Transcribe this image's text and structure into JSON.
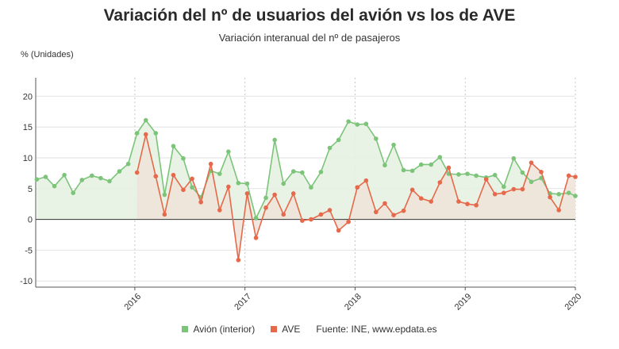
{
  "chart_data": {
    "type": "line",
    "title": "Variación del nº de usuarios del avión vs los de AVE",
    "subtitle": "Variación interanual del nº de pasajeros",
    "ylabel": "% (Unidades)",
    "xlabel": "",
    "ylim": [
      -11,
      23
    ],
    "yticks": [
      -10,
      -5,
      0,
      5,
      10,
      15,
      20
    ],
    "x_start": 2015.1,
    "x_end": 2020.0,
    "xticks": [
      2016,
      2017,
      2018,
      2019,
      2020
    ],
    "xtick_labels": [
      "2016",
      "2017",
      "2018",
      "2019",
      "2020"
    ],
    "grid": "horizontal",
    "legend_position": "bottom",
    "source": "Fuente: INE, www.epdata.es",
    "series": [
      {
        "name": "Avión (interior)",
        "color": "#7cc47a",
        "fill": "#e6f2e2",
        "x": [
          2015.11,
          2015.19,
          2015.27,
          2015.36,
          2015.44,
          2015.52,
          2015.61,
          2015.69,
          2015.77,
          2015.86,
          2015.94,
          2016.02,
          2016.1,
          2016.19,
          2016.27,
          2016.35,
          2016.44,
          2016.52,
          2016.6,
          2016.69,
          2016.77,
          2016.85,
          2016.94,
          2017.02,
          2017.1,
          2017.19,
          2017.27,
          2017.35,
          2017.44,
          2017.52,
          2017.6,
          2017.69,
          2017.77,
          2017.85,
          2017.94,
          2018.02,
          2018.1,
          2018.19,
          2018.27,
          2018.35,
          2018.44,
          2018.52,
          2018.6,
          2018.69,
          2018.77,
          2018.85,
          2018.94,
          2019.02,
          2019.1,
          2019.19,
          2019.27,
          2019.35,
          2019.44,
          2019.52,
          2019.6,
          2019.69,
          2019.77,
          2019.85,
          2019.94,
          2020.0
        ],
        "values": [
          6.5,
          6.9,
          5.4,
          7.2,
          4.3,
          6.4,
          7.1,
          6.7,
          6.2,
          7.8,
          9.0,
          14.0,
          16.1,
          14.0,
          4.0,
          11.9,
          9.9,
          5.2,
          3.6,
          7.9,
          7.4,
          11.0,
          5.9,
          5.8,
          0.2,
          3.5,
          12.9,
          5.8,
          7.8,
          7.6,
          5.2,
          7.7,
          11.6,
          12.9,
          15.9,
          15.4,
          15.5,
          13.1,
          8.8,
          12.1,
          8.0,
          7.9,
          8.9,
          8.9,
          10.1,
          7.4,
          7.3,
          7.4,
          7.1,
          6.8,
          7.2,
          5.3,
          9.9,
          7.6,
          6.1,
          6.7,
          4.2,
          4.1,
          4.3,
          3.8
        ]
      },
      {
        "name": "AVE",
        "color": "#e5694a",
        "fill": "#efe3d9",
        "x": [
          2016.02,
          2016.1,
          2016.19,
          2016.27,
          2016.35,
          2016.44,
          2016.52,
          2016.6,
          2016.69,
          2016.77,
          2016.85,
          2016.94,
          2017.02,
          2017.1,
          2017.19,
          2017.27,
          2017.35,
          2017.44,
          2017.52,
          2017.6,
          2017.69,
          2017.77,
          2017.85,
          2017.94,
          2018.02,
          2018.1,
          2018.19,
          2018.27,
          2018.35,
          2018.44,
          2018.52,
          2018.6,
          2018.69,
          2018.77,
          2018.85,
          2018.94,
          2019.02,
          2019.1,
          2019.19,
          2019.27,
          2019.35,
          2019.44,
          2019.52,
          2019.6,
          2019.69,
          2019.77,
          2019.85,
          2019.94,
          2020.0
        ],
        "values": [
          7.6,
          13.8,
          7.0,
          0.8,
          7.2,
          4.8,
          6.6,
          2.8,
          9.0,
          1.5,
          5.3,
          -6.6,
          4.2,
          -3.0,
          1.9,
          4.0,
          0.8,
          4.2,
          -0.2,
          0.0,
          0.8,
          1.5,
          -1.8,
          -0.4,
          5.2,
          6.3,
          1.2,
          2.6,
          0.7,
          1.4,
          4.8,
          3.4,
          2.9,
          6.0,
          8.4,
          2.9,
          2.5,
          2.3,
          6.5,
          4.1,
          4.3,
          4.9,
          4.9,
          9.2,
          7.7,
          3.6,
          1.5,
          7.1,
          6.9
        ]
      }
    ]
  }
}
